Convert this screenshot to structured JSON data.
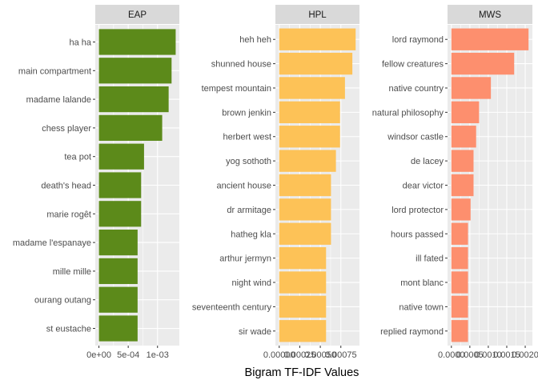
{
  "chart_data": {
    "type": "bar",
    "orientation": "horizontal",
    "xlabel": "Bigram TF-IDF Values",
    "ylabel": "",
    "grid": true,
    "facets": [
      {
        "name": "EAP",
        "color": "#5c8a1a",
        "categories": [
          "ha ha",
          "main compartment",
          "madame lalande",
          "chess player",
          "tea pot",
          "death's head",
          "marie rogêt",
          "madame l'espanaye",
          "mille mille",
          "ourang outang",
          "st eustache"
        ],
        "values": [
          0.00131,
          0.00124,
          0.00119,
          0.00108,
          0.00077,
          0.00072,
          0.00072,
          0.00066,
          0.00066,
          0.00066,
          0.00066
        ],
        "xlim": [
          -6.25e-05,
          0.0013725
        ],
        "ticks": [
          0,
          0.0005,
          0.001
        ],
        "tick_labels": [
          "0e+00",
          "5e-04",
          "1e-03"
        ]
      },
      {
        "name": "HPL",
        "color": "#fdc257",
        "categories": [
          "heh heh",
          "shunned house",
          "tempest mountain",
          "brown jenkin",
          "herbert west",
          "yog sothoth",
          "ancient house",
          "dr armitage",
          "hatheg kla",
          "arthur jermyn",
          "night wind",
          "seventeenth century",
          "sir wade"
        ],
        "values": [
          0.00093,
          0.00089,
          0.0008,
          0.00074,
          0.00074,
          0.00069,
          0.00063,
          0.00063,
          0.00063,
          0.00057,
          0.00057,
          0.00057,
          0.00057
        ],
        "xlim": [
          -4.65e-05,
          0.0009765
        ],
        "ticks": [
          0,
          0.00025,
          0.0005,
          0.00075
        ],
        "tick_labels": [
          "0.00000",
          "0.00025",
          "0.00050",
          "0.00075"
        ]
      },
      {
        "name": "MWS",
        "color": "#fd8f6e",
        "categories": [
          "lord raymond",
          "fellow creatures",
          "native country",
          "natural philosophy",
          "windsor castle",
          "de lacey",
          "dear victor",
          "lord protector",
          "hours passed",
          "ill fated",
          "mont blanc",
          "native town",
          "replied raymond"
        ],
        "values": [
          0.00209,
          0.0017,
          0.00107,
          0.00075,
          0.00067,
          0.0006,
          0.0006,
          0.00052,
          0.00045,
          0.00045,
          0.00045,
          0.00045,
          0.00045
        ],
        "xlim": [
          -0.0001045,
          0.0021945
        ],
        "ticks": [
          0,
          0.0005,
          0.001,
          0.0015,
          0.002
        ],
        "tick_labels": [
          "0.0000",
          "0.0005",
          "0.0010",
          "0.0015",
          "0.0020"
        ]
      }
    ]
  }
}
